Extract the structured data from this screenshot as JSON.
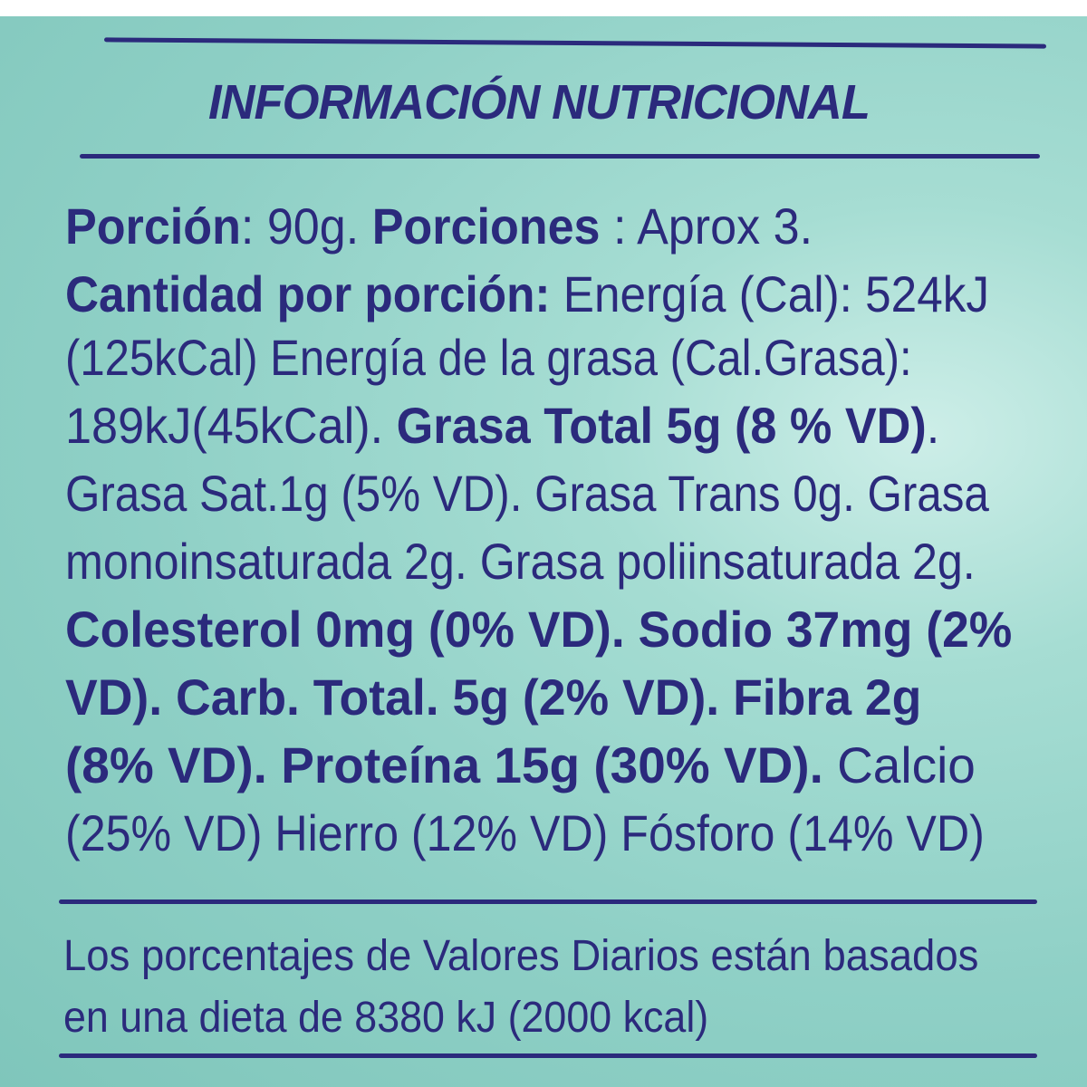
{
  "title": "INFORMACIÓN NUTRICIONAL",
  "colors": {
    "text": "#2b2a7c",
    "background": "#8fd0c6"
  },
  "body_lines": [
    [
      {
        "t": "Porción",
        "b": true
      },
      {
        "t": ": 90g. ",
        "b": false
      },
      {
        "t": "Porciones",
        "b": true
      },
      {
        "t": " : Aprox 3.",
        "b": false
      }
    ],
    [
      {
        "t": "Cantidad por porción:",
        "b": true
      },
      {
        "t": " Energía (Cal): 524kJ",
        "b": false
      }
    ],
    [
      {
        "t": "(125kCal) Energía de la grasa (Cal.Grasa):",
        "b": false
      }
    ],
    [
      {
        "t": "189kJ(45kCal). ",
        "b": false
      },
      {
        "t": "Grasa Total 5g (8 % VD)",
        "b": true
      },
      {
        "t": ".",
        "b": false
      }
    ],
    [
      {
        "t": "Grasa Sat.1g (5% VD). Grasa Trans 0g. Grasa",
        "b": false
      }
    ],
    [
      {
        "t": "monoinsaturada 2g. Grasa poliinsaturada 2g.",
        "b": false
      }
    ],
    [
      {
        "t": "Colesterol 0mg (0% VD). Sodio 37mg (2%",
        "b": true
      }
    ],
    [
      {
        "t": "VD). Carb. Total. 5g (2% VD). Fibra 2g",
        "b": true
      }
    ],
    [
      {
        "t": "(8% VD). Proteína 15g (30% VD).",
        "b": true
      },
      {
        "t": " Calcio",
        "b": false
      }
    ],
    [
      {
        "t": "(25% VD) Hierro (12% VD) Fósforo (14% VD)",
        "b": false
      }
    ]
  ],
  "footer_lines": [
    "Los porcentajes de Valores Diarios están basados",
    "en una dieta de 8380 kJ (2000 kcal)"
  ]
}
